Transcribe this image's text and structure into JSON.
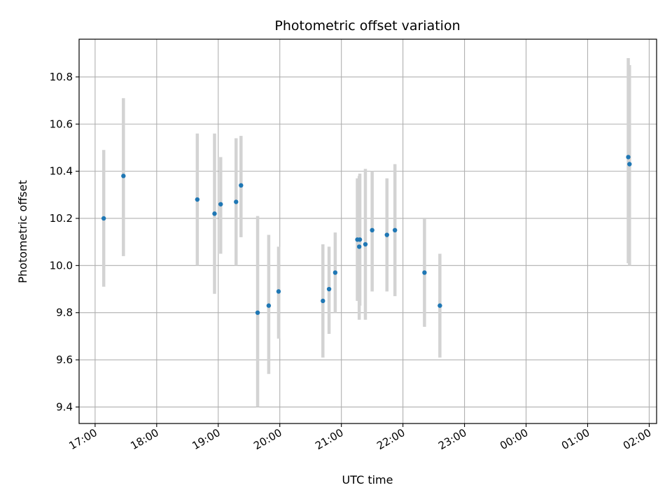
{
  "chart_data": {
    "type": "scatter",
    "title": "Photometric offset variation",
    "xlabel": "UTC time",
    "ylabel": "Photometric offset",
    "x_ticks": [
      "17:00",
      "18:00",
      "19:00",
      "20:00",
      "21:00",
      "22:00",
      "23:00",
      "00:00",
      "01:00",
      "02:00"
    ],
    "x_tick_hours": [
      17,
      18,
      19,
      20,
      21,
      22,
      23,
      24,
      25,
      26
    ],
    "y_ticks": [
      "9.4",
      "9.6",
      "9.8",
      "10.0",
      "10.2",
      "10.4",
      "10.6",
      "10.8"
    ],
    "y_tick_values": [
      9.4,
      9.6,
      9.8,
      10.0,
      10.2,
      10.4,
      10.6,
      10.8
    ],
    "xlim_hours": [
      16.74,
      26.12
    ],
    "ylim": [
      9.33,
      10.96
    ],
    "grid": true,
    "point_color": "#1f77b4",
    "errorbar_color": "#d3d3d3",
    "points": [
      {
        "t": "17:08",
        "h": 17.14,
        "y": 10.2,
        "ylow": 9.91,
        "yhigh": 10.49
      },
      {
        "t": "17:27",
        "h": 17.46,
        "y": 10.38,
        "ylow": 10.04,
        "yhigh": 10.71
      },
      {
        "t": "18:39",
        "h": 18.66,
        "y": 10.28,
        "ylow": 10.0,
        "yhigh": 10.56
      },
      {
        "t": "18:56",
        "h": 18.94,
        "y": 10.22,
        "ylow": 9.88,
        "yhigh": 10.56
      },
      {
        "t": "19:03",
        "h": 19.04,
        "y": 10.26,
        "ylow": 10.05,
        "yhigh": 10.46
      },
      {
        "t": "19:17",
        "h": 19.29,
        "y": 10.27,
        "ylow": 10.0,
        "yhigh": 10.54
      },
      {
        "t": "19:23",
        "h": 19.37,
        "y": 10.34,
        "ylow": 10.12,
        "yhigh": 10.55
      },
      {
        "t": "19:39",
        "h": 19.64,
        "y": 9.8,
        "ylow": 9.4,
        "yhigh": 10.21
      },
      {
        "t": "19:49",
        "h": 19.82,
        "y": 9.83,
        "ylow": 9.54,
        "yhigh": 10.13
      },
      {
        "t": "19:59",
        "h": 19.98,
        "y": 9.89,
        "ylow": 9.69,
        "yhigh": 10.08
      },
      {
        "t": "20:42",
        "h": 20.7,
        "y": 9.85,
        "ylow": 9.61,
        "yhigh": 10.09
      },
      {
        "t": "20:48",
        "h": 20.8,
        "y": 9.9,
        "ylow": 9.71,
        "yhigh": 10.08
      },
      {
        "t": "20:54",
        "h": 20.9,
        "y": 9.97,
        "ylow": 9.8,
        "yhigh": 10.14
      },
      {
        "t": "21:16",
        "h": 21.26,
        "y": 10.11,
        "ylow": 9.85,
        "yhigh": 10.37
      },
      {
        "t": "21:17",
        "h": 21.29,
        "y": 10.08,
        "ylow": 9.77,
        "yhigh": 10.38
      },
      {
        "t": "21:18",
        "h": 21.3,
        "y": 10.11,
        "ylow": 9.83,
        "yhigh": 10.39
      },
      {
        "t": "21:23",
        "h": 21.39,
        "y": 10.09,
        "ylow": 9.77,
        "yhigh": 10.41
      },
      {
        "t": "21:30",
        "h": 21.5,
        "y": 10.15,
        "ylow": 9.89,
        "yhigh": 10.4
      },
      {
        "t": "21:44",
        "h": 21.74,
        "y": 10.13,
        "ylow": 9.89,
        "yhigh": 10.37
      },
      {
        "t": "21:52",
        "h": 21.87,
        "y": 10.15,
        "ylow": 9.87,
        "yhigh": 10.43
      },
      {
        "t": "22:21",
        "h": 22.35,
        "y": 9.97,
        "ylow": 9.74,
        "yhigh": 10.2
      },
      {
        "t": "22:36",
        "h": 22.6,
        "y": 9.83,
        "ylow": 9.61,
        "yhigh": 10.05
      },
      {
        "t": "01:40",
        "h": 25.66,
        "y": 10.46,
        "ylow": 10.01,
        "yhigh": 10.88
      },
      {
        "t": "01:41",
        "h": 25.68,
        "y": 10.43,
        "ylow": 10.0,
        "yhigh": 10.85
      }
    ]
  }
}
